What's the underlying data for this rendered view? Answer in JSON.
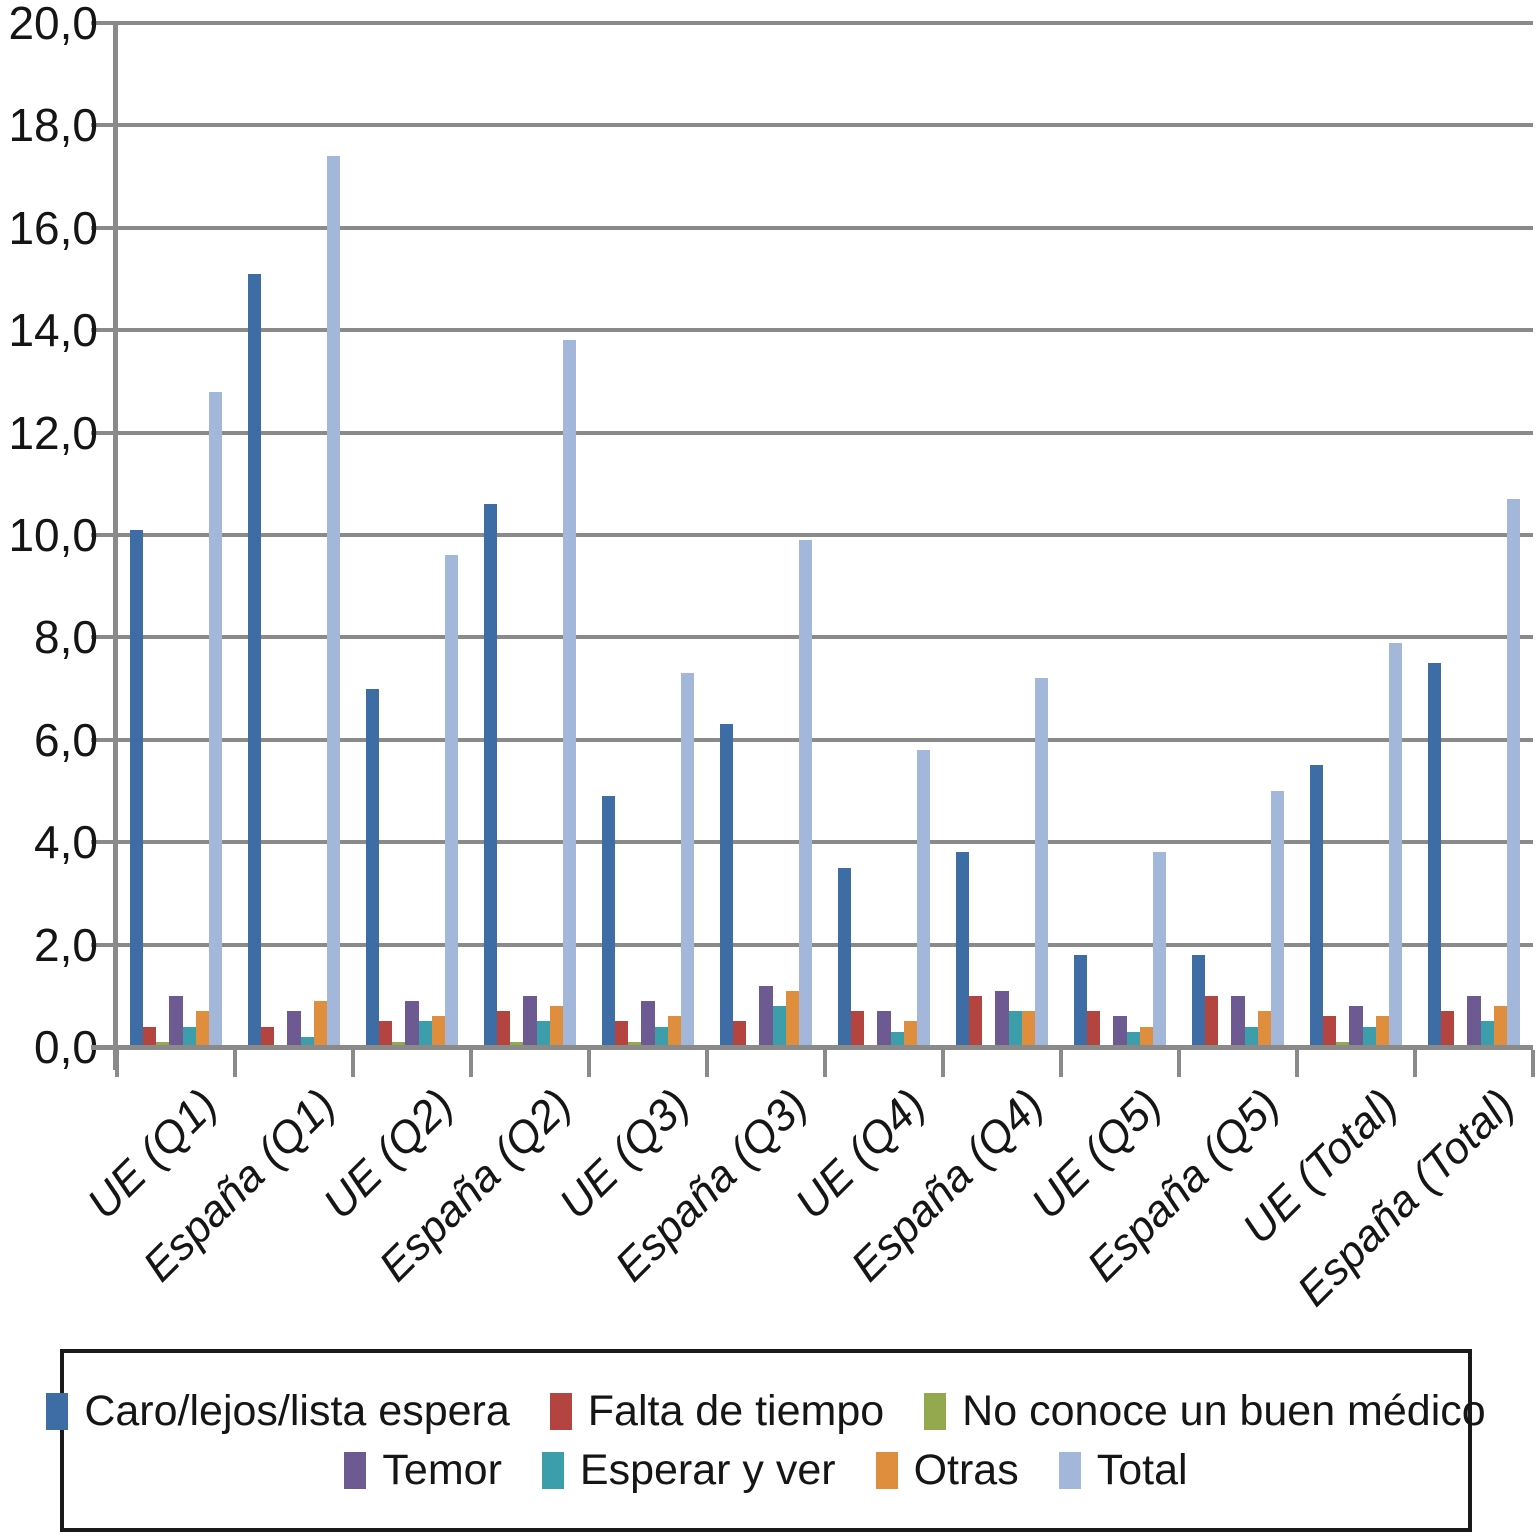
{
  "figure": {
    "background": "#FFFFFF",
    "axis_color": "#8A8A8A",
    "text_color": "#151515",
    "legend_border_color": "#1A1A1A"
  },
  "chart_data": {
    "type": "bar",
    "title": "",
    "categories": [
      "UE (Q1)",
      "España (Q1)",
      "UE (Q2)",
      "España (Q2)",
      "UE (Q3)",
      "España (Q3)",
      "UE (Q4)",
      "España (Q4)",
      "UE (Q5)",
      "España (Q5)",
      "UE (Total)",
      "España (Total)"
    ],
    "series": [
      {
        "name": "Caro/lejos/lista espera",
        "color": "#3E6DA5",
        "values": [
          10.1,
          15.1,
          7.0,
          10.6,
          4.9,
          6.3,
          3.5,
          3.8,
          1.8,
          1.8,
          5.5,
          7.5
        ]
      },
      {
        "name": "Falta de tiempo",
        "color": "#B4443F",
        "values": [
          0.4,
          0.4,
          0.5,
          0.7,
          0.5,
          0.5,
          0.7,
          1.0,
          0.7,
          1.0,
          0.6,
          0.7
        ]
      },
      {
        "name": "No conoce un buen médico",
        "color": "#94A94D",
        "values": [
          0.1,
          0.0,
          0.1,
          0.1,
          0.1,
          0.0,
          0.0,
          0.0,
          0.0,
          0.0,
          0.1,
          0.0
        ]
      },
      {
        "name": "Temor",
        "color": "#6E5A92",
        "values": [
          1.0,
          0.7,
          0.9,
          1.0,
          0.9,
          1.2,
          0.7,
          1.1,
          0.6,
          1.0,
          0.8,
          1.0
        ]
      },
      {
        "name": "Esperar y ver",
        "color": "#3C9EAB",
        "values": [
          0.4,
          0.2,
          0.5,
          0.5,
          0.4,
          0.8,
          0.3,
          0.7,
          0.3,
          0.4,
          0.4,
          0.5
        ]
      },
      {
        "name": "Otras",
        "color": "#DF8E3D",
        "values": [
          0.7,
          0.9,
          0.6,
          0.8,
          0.6,
          1.1,
          0.5,
          0.7,
          0.4,
          0.7,
          0.6,
          0.8
        ]
      },
      {
        "name": "Total",
        "color": "#A2B7DA",
        "values": [
          12.8,
          17.4,
          9.6,
          13.8,
          7.3,
          9.9,
          5.8,
          7.2,
          3.8,
          5.0,
          7.9,
          10.7
        ]
      }
    ],
    "ylim": [
      0,
      20
    ],
    "yticks": [
      {
        "v": 0,
        "label": "0,0"
      },
      {
        "v": 2,
        "label": "2,0"
      },
      {
        "v": 4,
        "label": "4,0"
      },
      {
        "v": 6,
        "label": "6,0"
      },
      {
        "v": 8,
        "label": "8,0"
      },
      {
        "v": 10,
        "label": "10,0"
      },
      {
        "v": 12,
        "label": "12,0"
      },
      {
        "v": 14,
        "label": "14,0"
      },
      {
        "v": 16,
        "label": "16,0"
      },
      {
        "v": 18,
        "label": "18,0"
      },
      {
        "v": 20,
        "label": "20,0"
      }
    ],
    "grid": true,
    "legend_position": "bottom",
    "legend_row_split": 3
  }
}
